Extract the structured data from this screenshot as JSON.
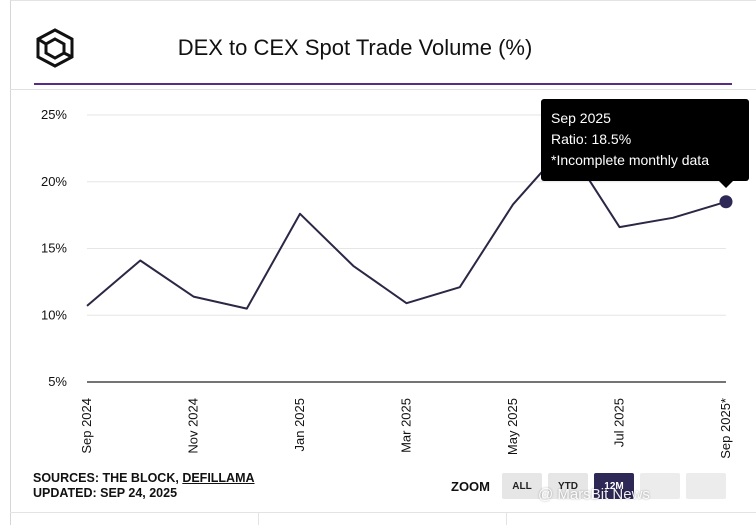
{
  "header": {
    "title": "DEX to CEX Spot Trade Volume (%)",
    "logo_icon": "the-block-cube-logo",
    "accent_color": "#5b2a86"
  },
  "chart_data": {
    "type": "line",
    "title": "DEX to CEX Spot Trade Volume (%)",
    "xlabel": "",
    "ylabel": "",
    "ylim": [
      5,
      25
    ],
    "y_ticks": [
      "5%",
      "10%",
      "15%",
      "20%",
      "25%"
    ],
    "y_tick_values": [
      5,
      10,
      15,
      20,
      25
    ],
    "x_tick_labels": [
      "Sep 2024",
      "Nov 2024",
      "Jan 2025",
      "Mar 2025",
      "May 2025",
      "Jul 2025",
      "Sep 2025*"
    ],
    "x_tick_indices": [
      0,
      2,
      4,
      6,
      8,
      10,
      12
    ],
    "grid": true,
    "line_color": "#2b2745",
    "series": [
      {
        "categories": [
          "Sep 2024",
          "Oct 2024",
          "Nov 2024",
          "Dec 2024",
          "Jan 2025",
          "Feb 2025",
          "Mar 2025",
          "Apr 2025",
          "May 2025",
          "Jun 2025",
          "Jul 2025",
          "Aug 2025",
          "Sep 2025"
        ],
        "values": [
          10.7,
          14.1,
          11.4,
          10.5,
          17.6,
          13.7,
          10.9,
          12.1,
          18.3,
          22.8,
          16.6,
          17.3,
          18.5
        ]
      }
    ]
  },
  "tooltip": {
    "date": "Sep 2025",
    "ratio": "Ratio: 18.5%",
    "note": "*Incomplete monthly data"
  },
  "footer": {
    "sources_prefix": "SOURCES: THE BLOCK, ",
    "sources_link": "DEFILLAMA",
    "updated": "UPDATED: SEP 24, 2025"
  },
  "zoom": {
    "label": "ZOOM",
    "buttons": [
      "ALL",
      "YTD",
      "12M"
    ],
    "active": "12M"
  },
  "watermark": {
    "text": "@ MarsBit News"
  }
}
